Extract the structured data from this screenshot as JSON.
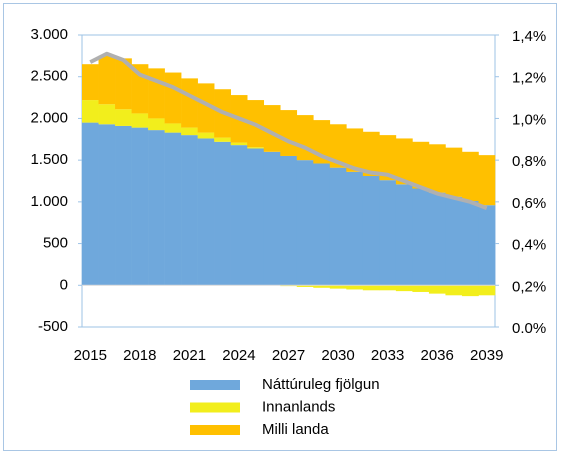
{
  "chart_data": {
    "type": "bar",
    "categories": [
      "2015",
      null,
      null,
      "2018",
      null,
      null,
      "2021",
      null,
      null,
      "2024",
      null,
      null,
      "2027",
      null,
      null,
      "2030",
      null,
      null,
      "2033",
      null,
      null,
      "2036",
      null,
      null,
      "2039"
    ],
    "stacked": true,
    "series": [
      {
        "name": "Náttúruleg fjölgun",
        "color": "#6fa8dc",
        "values": [
          1950,
          1930,
          1910,
          1890,
          1860,
          1830,
          1800,
          1760,
          1720,
          1680,
          1640,
          1600,
          1550,
          1500,
          1460,
          1410,
          1360,
          1310,
          1260,
          1210,
          1160,
          1110,
          1060,
          1010,
          960
        ]
      },
      {
        "name": "Innanlands",
        "color": "#f2ee1c",
        "values": [
          270,
          240,
          200,
          170,
          140,
          110,
          90,
          70,
          50,
          30,
          15,
          0,
          -10,
          -20,
          -30,
          -40,
          -50,
          -60,
          -60,
          -70,
          -80,
          -100,
          -120,
          -130,
          -120
        ]
      },
      {
        "name": "Milli landa",
        "color": "#ffc000",
        "values": [
          430,
          580,
          610,
          590,
          600,
          610,
          590,
          590,
          580,
          570,
          565,
          560,
          550,
          540,
          520,
          520,
          520,
          530,
          540,
          550,
          560,
          580,
          590,
          590,
          600
        ]
      },
      {
        "type": "line",
        "axis": "y2",
        "color": "#b0b0b0",
        "values": [
          1.27,
          1.31,
          1.28,
          1.21,
          1.18,
          1.15,
          1.11,
          1.07,
          1.03,
          1.0,
          0.97,
          0.93,
          0.89,
          0.86,
          0.82,
          0.79,
          0.76,
          0.74,
          0.73,
          0.7,
          0.67,
          0.64,
          0.62,
          0.6,
          0.57
        ]
      }
    ],
    "ylim": [
      -500,
      3000
    ],
    "yticks": [
      -500,
      0,
      500,
      {
        "value": 1000,
        "label": "1.000"
      },
      {
        "value": 1500,
        "label": "1.500"
      },
      {
        "value": 2000,
        "label": "2.000"
      },
      {
        "value": 2500,
        "label": "2.500"
      },
      {
        "value": 3000,
        "label": "3.000"
      }
    ],
    "y2lim": [
      0,
      1.4
    ],
    "y2ticks": [
      {
        "value": 0,
        "label": "0.0%"
      },
      {
        "value": 0.2,
        "label": "0,2%"
      },
      {
        "value": 0.4,
        "label": "0,4%"
      },
      {
        "value": 0.6,
        "label": "0,6%"
      },
      {
        "value": 0.8,
        "label": "0,8%"
      },
      {
        "value": 1.0,
        "label": "1,0%"
      },
      {
        "value": 1.2,
        "label": "1,2%"
      },
      {
        "value": 1.4,
        "label": "1,4%"
      }
    ],
    "grid": false,
    "legend": "bottom"
  }
}
